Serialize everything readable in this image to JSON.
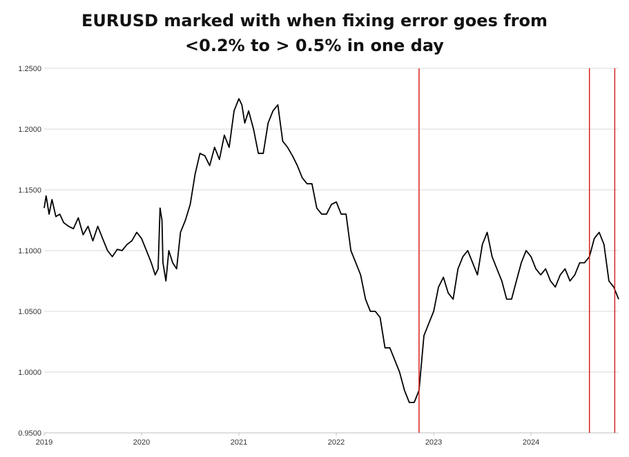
{
  "chart_data": {
    "type": "line",
    "title_lines": [
      "EURUSD marked with when fixing error goes from",
      "<0.2% to > 0.5% in one day"
    ],
    "xlabel": "",
    "ylabel": "",
    "ylim": [
      0.95,
      1.25
    ],
    "xlim": [
      2019.0,
      2024.9
    ],
    "y_ticks": [
      "1.2500",
      "1.2000",
      "1.1500",
      "1.1000",
      "1.0500",
      "1.0000",
      "0.9500"
    ],
    "x_ticks": [
      "2019",
      "2020",
      "2021",
      "2022",
      "2023",
      "2024"
    ],
    "grid": "horizontal",
    "series": [
      {
        "color": "#000000",
        "x": [
          2019.0,
          2019.02,
          2019.05,
          2019.08,
          2019.12,
          2019.16,
          2019.2,
          2019.25,
          2019.3,
          2019.35,
          2019.4,
          2019.45,
          2019.5,
          2019.55,
          2019.6,
          2019.65,
          2019.7,
          2019.75,
          2019.8,
          2019.85,
          2019.9,
          2019.95,
          2020.0,
          2020.05,
          2020.1,
          2020.14,
          2020.17,
          2020.19,
          2020.21,
          2020.22,
          2020.25,
          2020.28,
          2020.32,
          2020.36,
          2020.4,
          2020.45,
          2020.5,
          2020.55,
          2020.6,
          2020.65,
          2020.7,
          2020.75,
          2020.8,
          2020.85,
          2020.9,
          2020.95,
          2021.0,
          2021.03,
          2021.06,
          2021.1,
          2021.15,
          2021.2,
          2021.25,
          2021.3,
          2021.35,
          2021.4,
          2021.45,
          2021.5,
          2021.55,
          2021.6,
          2021.65,
          2021.7,
          2021.75,
          2021.8,
          2021.85,
          2021.9,
          2021.95,
          2022.0,
          2022.05,
          2022.1,
          2022.15,
          2022.2,
          2022.25,
          2022.3,
          2022.35,
          2022.4,
          2022.45,
          2022.5,
          2022.55,
          2022.6,
          2022.65,
          2022.7,
          2022.75,
          2022.8,
          2022.85,
          2022.9,
          2022.95,
          2023.0,
          2023.05,
          2023.1,
          2023.15,
          2023.2,
          2023.25,
          2023.3,
          2023.35,
          2023.4,
          2023.45,
          2023.5,
          2023.55,
          2023.6,
          2023.65,
          2023.7,
          2023.75,
          2023.8,
          2023.85,
          2023.9,
          2023.95,
          2024.0,
          2024.05,
          2024.1,
          2024.15,
          2024.2,
          2024.25,
          2024.3,
          2024.35,
          2024.4,
          2024.45,
          2024.5,
          2024.55,
          2024.6,
          2024.65,
          2024.7,
          2024.75,
          2024.8,
          2024.85,
          2024.9
        ],
        "values": [
          1.135,
          1.145,
          1.13,
          1.142,
          1.128,
          1.13,
          1.123,
          1.12,
          1.118,
          1.127,
          1.113,
          1.12,
          1.108,
          1.12,
          1.11,
          1.1,
          1.095,
          1.101,
          1.1,
          1.105,
          1.108,
          1.115,
          1.11,
          1.1,
          1.09,
          1.08,
          1.085,
          1.135,
          1.125,
          1.09,
          1.075,
          1.1,
          1.09,
          1.085,
          1.115,
          1.125,
          1.138,
          1.163,
          1.18,
          1.178,
          1.17,
          1.185,
          1.175,
          1.195,
          1.185,
          1.215,
          1.225,
          1.22,
          1.205,
          1.215,
          1.2,
          1.18,
          1.18,
          1.205,
          1.215,
          1.22,
          1.19,
          1.185,
          1.178,
          1.17,
          1.16,
          1.155,
          1.155,
          1.135,
          1.13,
          1.13,
          1.138,
          1.14,
          1.13,
          1.13,
          1.1,
          1.09,
          1.08,
          1.06,
          1.05,
          1.05,
          1.045,
          1.02,
          1.02,
          1.01,
          1.0,
          0.985,
          0.975,
          0.975,
          0.985,
          1.03,
          1.04,
          1.05,
          1.07,
          1.078,
          1.065,
          1.06,
          1.085,
          1.095,
          1.1,
          1.09,
          1.08,
          1.105,
          1.115,
          1.095,
          1.085,
          1.075,
          1.06,
          1.06,
          1.075,
          1.09,
          1.1,
          1.095,
          1.085,
          1.08,
          1.085,
          1.075,
          1.07,
          1.08,
          1.085,
          1.075,
          1.08,
          1.09,
          1.09,
          1.095,
          1.11,
          1.115,
          1.105,
          1.075,
          1.07,
          1.06
        ]
      }
    ],
    "vlines": {
      "color": "#d62020",
      "x": [
        2022.85,
        2024.6,
        2024.86
      ]
    }
  }
}
